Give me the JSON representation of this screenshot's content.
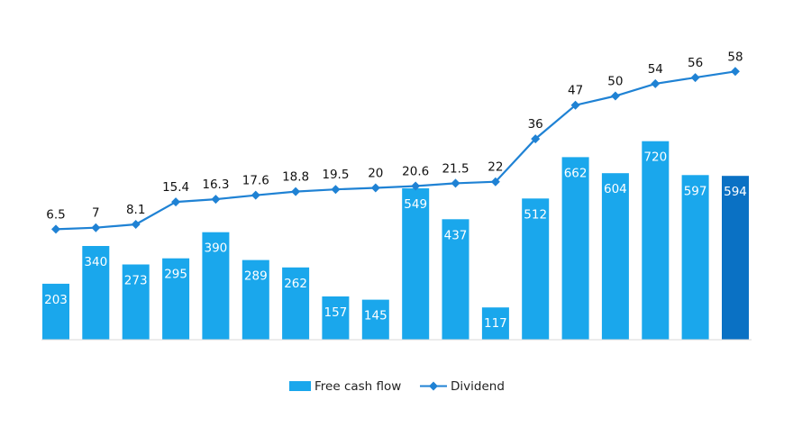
{
  "chart_data": {
    "type": "bar",
    "categories": [
      "",
      "",
      "",
      "",
      "",
      "",
      "",
      "",
      "",
      "",
      "",
      "",
      "",
      "",
      "",
      "",
      "",
      ""
    ],
    "series": [
      {
        "name": "Free cash flow",
        "type": "bar",
        "values": [
          203,
          340,
          273,
          295,
          390,
          289,
          262,
          157,
          145,
          549,
          437,
          117,
          512,
          662,
          604,
          720,
          597,
          594
        ],
        "color": "#1aa7ec",
        "highlight_last_color": "#0a71c4"
      },
      {
        "name": "Dividend",
        "type": "line",
        "values": [
          6.5,
          7,
          8.1,
          15.4,
          16.3,
          17.6,
          18.8,
          19.5,
          20,
          20.6,
          21.5,
          22,
          36,
          47,
          50,
          54,
          56,
          58
        ],
        "labels": [
          "6.5",
          "7",
          "8.1",
          "15.4",
          "16.3",
          "17.6",
          "18.8",
          "19.5",
          "20",
          "20.6",
          "21.5",
          "22",
          "36",
          "47",
          "50",
          "54",
          "56",
          "58"
        ],
        "color": "#1f82d4",
        "marker": "diamond"
      }
    ],
    "legend": {
      "position": "bottom",
      "items": [
        {
          "label": "Free cash flow",
          "kind": "bar"
        },
        {
          "label": "Dividend",
          "kind": "line"
        }
      ]
    },
    "grid": false
  }
}
